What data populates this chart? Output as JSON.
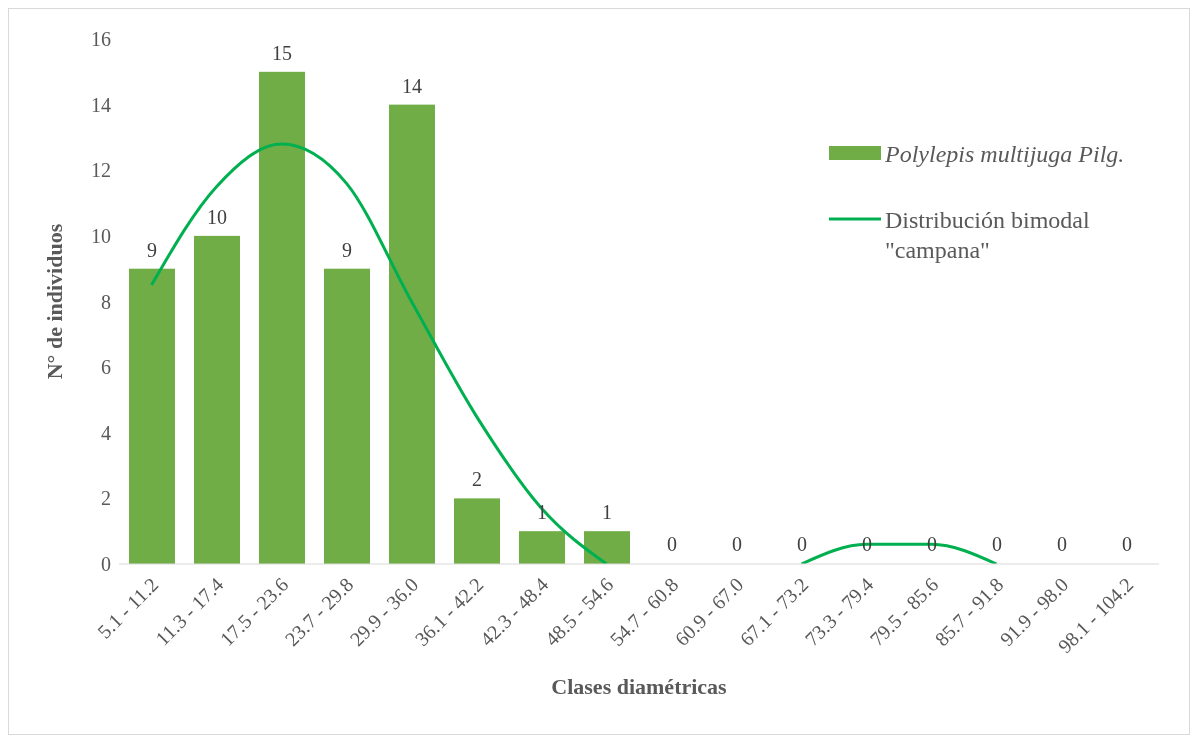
{
  "chart_data": {
    "type": "bar",
    "xlabel": "Clases diamétricas",
    "ylabel": "N° de individuos",
    "categories": [
      "5.1 - 11.2",
      "11.3 - 17.4",
      "17.5 - 23.6",
      "23.7 - 29.8",
      "29.9 - 36.0",
      "36.1 - 42.2",
      "42.3 - 48.4",
      "48.5 - 54.6",
      "54.7 - 60.8",
      "60.9 - 67.0",
      "67.1 - 73.2",
      "73.3 - 79.4",
      "79.5 - 85.6",
      "85.7 - 91.8",
      "91.9 - 98.0",
      "98.1 - 104.2"
    ],
    "series": [
      {
        "name": "Polylepis multijuga Pilg.",
        "color": "#70ad47",
        "values": [
          9,
          10,
          15,
          9,
          14,
          2,
          1,
          1,
          0,
          0,
          0,
          0,
          0,
          0,
          0,
          0
        ],
        "value_labels": [
          "9",
          "10",
          "15",
          "9",
          "14",
          "2",
          "1",
          "1",
          "0",
          "0",
          "0",
          "0",
          "0",
          "0",
          "0",
          "0"
        ]
      },
      {
        "name": "Distribución bimodal \"campana\"",
        "type": "line",
        "color": "#00b050",
        "values": [
          8.5,
          11.5,
          12.8,
          11.6,
          8,
          4.5,
          1.7,
          0,
          null,
          null,
          0,
          0.6,
          0.6,
          0,
          null,
          null
        ]
      }
    ],
    "ylim": [
      0,
      16
    ],
    "yticks": [
      0,
      2,
      4,
      6,
      8,
      10,
      12,
      14,
      16
    ],
    "grid": false,
    "legend": "top right",
    "marker": "none",
    "line_style": "solid"
  }
}
